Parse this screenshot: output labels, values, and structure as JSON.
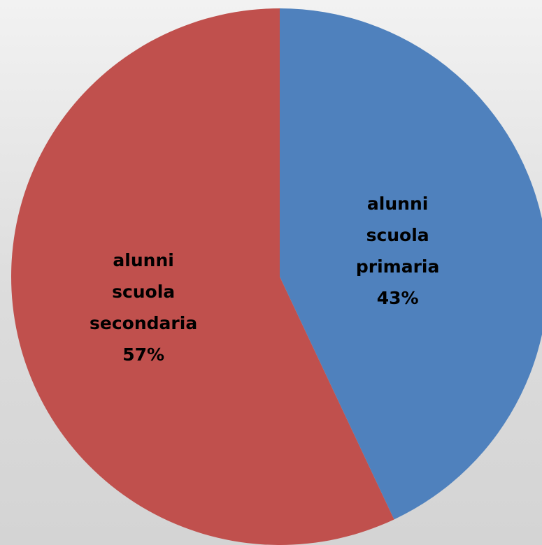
{
  "chart_data": {
    "type": "pie",
    "title": "",
    "series": [
      {
        "values": [
          43,
          57
        ],
        "labels": [
          "alunni scuola primaria",
          "alunni scuola secondaria"
        ]
      }
    ],
    "slices": [
      {
        "label_lines": [
          "alunni",
          "scuola",
          "primaria"
        ],
        "value": 43,
        "percent_text": "43%",
        "color": "#4F81BD"
      },
      {
        "label_lines": [
          "alunni",
          "scuola",
          "secondaria"
        ],
        "value": 57,
        "percent_text": "57%",
        "color": "#C0504D"
      }
    ],
    "start_angle": "12 o'clock",
    "direction": "clockwise",
    "legend": "none",
    "data_labels": "inside"
  }
}
